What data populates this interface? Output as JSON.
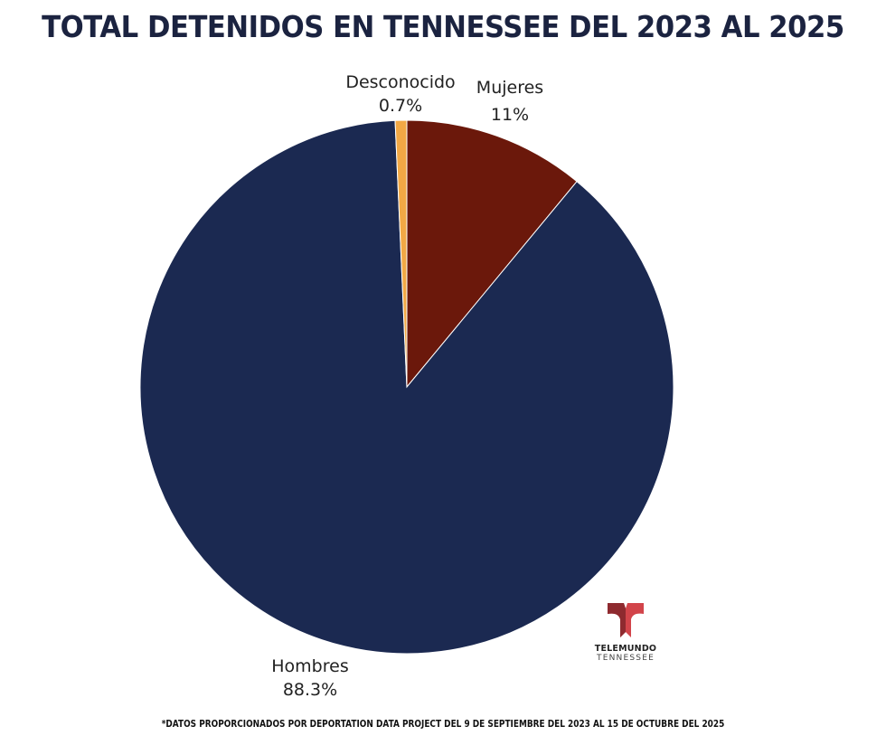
{
  "chart_data": {
    "type": "pie",
    "title": "TOTAL DETENIDOS EN TENNESSEE DEL 2023 AL 2025",
    "start_angle": "12 o'clock, clockwise",
    "slices": [
      {
        "label": "Mujeres",
        "value": 11,
        "display": "11%",
        "color": "#6b180b"
      },
      {
        "label": "Hombres",
        "value": 88.3,
        "display": "88.3%",
        "color": "#1b2951"
      },
      {
        "label": "Desconocido",
        "value": 0.7,
        "display": "0.7%",
        "color": "#f2a845"
      }
    ]
  },
  "footer": "*DATOS PROPORCIONADOS POR DEPORTATION DATA PROJECT DEL 9 DE SEPTIEMBRE DEL 2023 AL 15 DE OCTUBRE DEL 2025",
  "logo": {
    "line1": "TELEMUNDO",
    "line2": "TENNESSEE",
    "colors": [
      "#8e2a2f",
      "#e0464c"
    ]
  }
}
